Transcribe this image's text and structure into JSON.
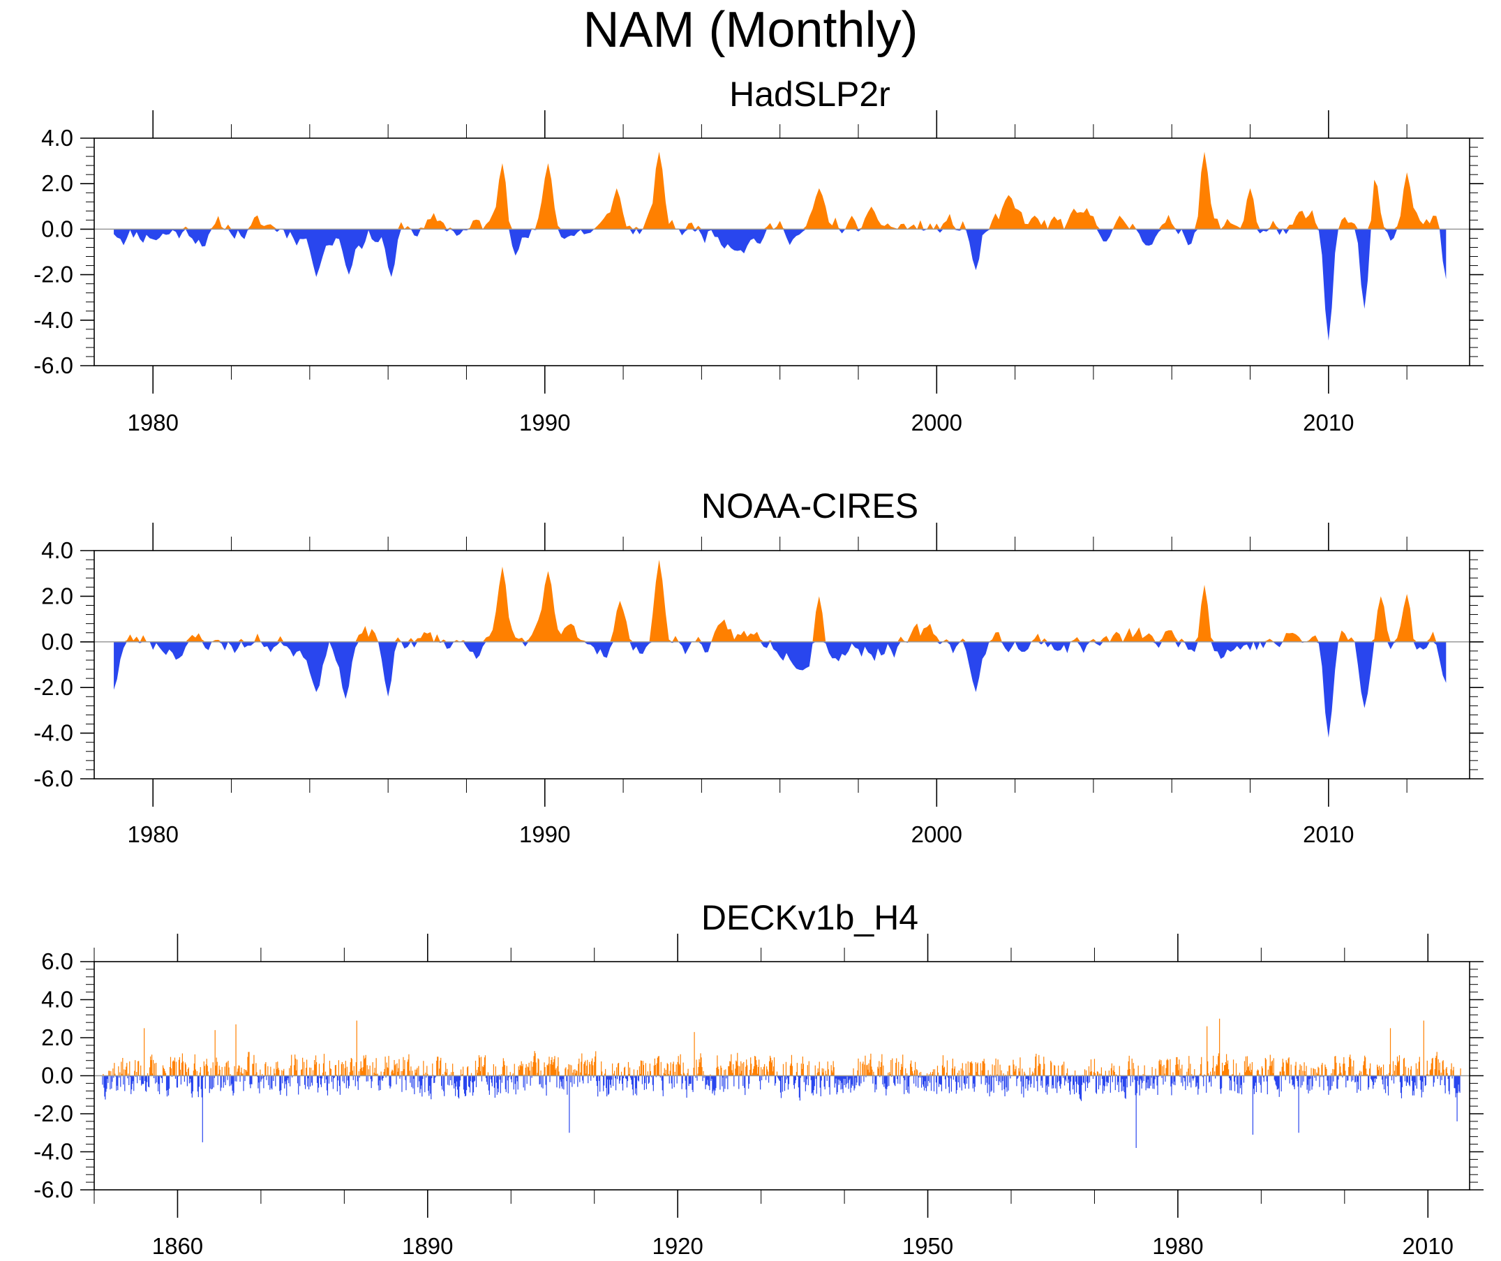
{
  "title": "NAM (Monthly)",
  "colors": {
    "positive": "#ff8000",
    "negative": "#2946ee",
    "axis": "#000000",
    "zero_line": "#999999"
  },
  "chart_data": [
    {
      "type": "area",
      "title": "HadSLP2r",
      "x_range": [
        1978.5,
        2013.6
      ],
      "x_major_ticks": [
        1980,
        1990,
        2000,
        2010
      ],
      "x_tick_labels": [
        "1980",
        "1990",
        "2000",
        "2010"
      ],
      "x_minor_step": 2,
      "ylim": [
        -6.0,
        4.0
      ],
      "y_ticks": [
        4.0,
        2.0,
        0.0,
        -2.0,
        -4.0,
        -6.0
      ],
      "y_tick_labels": [
        "4.0",
        "2.0",
        "0.0",
        "-2.0",
        "-4.0",
        "-6.0"
      ],
      "series_start": 1979.0,
      "series_end": 2013.0,
      "seed": 11,
      "events": [
        {
          "x": 1988.9,
          "v": 2.9
        },
        {
          "x": 1990.1,
          "v": 2.9
        },
        {
          "x": 1991.8,
          "v": 1.8
        },
        {
          "x": 1992.9,
          "v": 3.4
        },
        {
          "x": 1997.0,
          "v": 1.8
        },
        {
          "x": 2001.8,
          "v": 1.5
        },
        {
          "x": 2006.8,
          "v": 3.4
        },
        {
          "x": 2008.0,
          "v": 1.8
        },
        {
          "x": 2011.2,
          "v": 2.6
        },
        {
          "x": 2012.0,
          "v": 2.5
        },
        {
          "x": 1984.2,
          "v": -2.1
        },
        {
          "x": 1985.0,
          "v": -2.0
        },
        {
          "x": 1986.1,
          "v": -2.1
        },
        {
          "x": 2001.0,
          "v": -1.8
        },
        {
          "x": 2010.0,
          "v": -4.9
        },
        {
          "x": 2010.9,
          "v": -3.5
        },
        {
          "x": 2013.0,
          "v": -2.2
        }
      ]
    },
    {
      "type": "area",
      "title": "NOAA-CIRES",
      "x_range": [
        1978.5,
        2013.6
      ],
      "x_major_ticks": [
        1980,
        1990,
        2000,
        2010
      ],
      "x_tick_labels": [
        "1980",
        "1990",
        "2000",
        "2010"
      ],
      "x_minor_step": 2,
      "ylim": [
        -6.0,
        4.0
      ],
      "y_ticks": [
        4.0,
        2.0,
        0.0,
        -2.0,
        -4.0,
        -6.0
      ],
      "y_tick_labels": [
        "4.0",
        "2.0",
        "0.0",
        "-2.0",
        "-4.0",
        "-6.0"
      ],
      "series_start": 1979.0,
      "series_end": 2013.0,
      "seed": 23,
      "events": [
        {
          "x": 1988.9,
          "v": 3.3
        },
        {
          "x": 1990.1,
          "v": 3.1
        },
        {
          "x": 1991.9,
          "v": 1.8
        },
        {
          "x": 1992.9,
          "v": 3.6
        },
        {
          "x": 1997.0,
          "v": 2.0
        },
        {
          "x": 2006.8,
          "v": 2.5
        },
        {
          "x": 2011.3,
          "v": 2.0
        },
        {
          "x": 2012.0,
          "v": 2.1
        },
        {
          "x": 1979.0,
          "v": -2.1
        },
        {
          "x": 1984.2,
          "v": -2.2
        },
        {
          "x": 1984.9,
          "v": -2.5
        },
        {
          "x": 1986.0,
          "v": -2.4
        },
        {
          "x": 2001.0,
          "v": -2.2
        },
        {
          "x": 2010.0,
          "v": -4.2
        },
        {
          "x": 2010.9,
          "v": -2.9
        },
        {
          "x": 2013.0,
          "v": -1.8
        }
      ]
    },
    {
      "type": "area",
      "title": "DECKv1b_H4",
      "x_range": [
        1850.0,
        2015.0
      ],
      "x_major_ticks": [
        1860,
        1890,
        1920,
        1950,
        1980,
        2010
      ],
      "x_tick_labels": [
        "1860",
        "1890",
        "1920",
        "1950",
        "1980",
        "2010"
      ],
      "x_minor_step": 10,
      "ylim": [
        -6.0,
        6.0
      ],
      "y_ticks": [
        6.0,
        4.0,
        2.0,
        0.0,
        -2.0,
        -4.0,
        -6.0
      ],
      "y_tick_labels": [
        "6.0",
        "4.0",
        "2.0",
        "0.0",
        "-2.0",
        "-4.0",
        "-6.0"
      ],
      "series_start": 1851.0,
      "series_end": 2013.9,
      "seed": 37,
      "events": [
        {
          "x": 1856.0,
          "v": 2.5
        },
        {
          "x": 1864.5,
          "v": 2.4
        },
        {
          "x": 1867.0,
          "v": 2.7
        },
        {
          "x": 1881.5,
          "v": 2.9
        },
        {
          "x": 1922.0,
          "v": 2.3
        },
        {
          "x": 1983.5,
          "v": 2.6
        },
        {
          "x": 1985.0,
          "v": 3.0
        },
        {
          "x": 2005.5,
          "v": 2.5
        },
        {
          "x": 2009.5,
          "v": 2.9
        },
        {
          "x": 1863.0,
          "v": -3.5
        },
        {
          "x": 1907.0,
          "v": -3.0
        },
        {
          "x": 1975.0,
          "v": -3.8
        },
        {
          "x": 1989.0,
          "v": -3.1
        },
        {
          "x": 1994.5,
          "v": -3.0
        },
        {
          "x": 2013.5,
          "v": -2.4
        }
      ]
    }
  ]
}
